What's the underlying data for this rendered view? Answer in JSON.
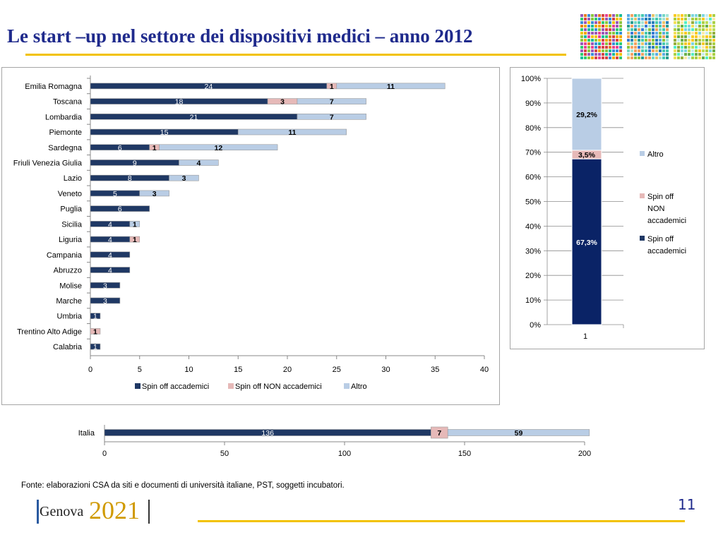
{
  "slide": {
    "title": "Le start –up nel settore dei dispositivi medici – anno 2012",
    "source": "Fonte: elaborazioni CSA da siti e documenti di università italiane, PST, soggetti incubatori.",
    "page_number": "11",
    "logo_text": "Genova",
    "logo_year": "2021",
    "colors": {
      "title": "#1f2a8c",
      "accent_line": "#f2c200",
      "spin_off_accademici": "#1f3864",
      "spin_off_non_accademici": "#e6b9b8",
      "altro": "#b9cde5",
      "stack_spin_off_accademici": "#0a2366"
    }
  },
  "chart_data": [
    {
      "type": "bar",
      "orientation": "horizontal",
      "stacked": true,
      "categories": [
        "Emilia Romagna",
        "Toscana",
        "Lombardia",
        "Piemonte",
        "Sardegna",
        "Friuli Venezia Giulia",
        "Lazio",
        "Veneto",
        "Puglia",
        "Sicilia",
        "Liguria",
        "Campania",
        "Abruzzo",
        "Molise",
        "Marche",
        "Umbria",
        "Trentino Alto Adige",
        "Calabria"
      ],
      "series": [
        {
          "name": "Spin off accademici",
          "values": [
            24,
            18,
            21,
            15,
            6,
            9,
            8,
            5,
            6,
            4,
            4,
            4,
            4,
            3,
            3,
            1,
            0,
            1
          ]
        },
        {
          "name": "Spin off NON accademici",
          "values": [
            1,
            3,
            0,
            0,
            1,
            0,
            0,
            0,
            0,
            0,
            1,
            0,
            0,
            0,
            0,
            0,
            1,
            0
          ]
        },
        {
          "name": "Altro",
          "values": [
            11,
            7,
            7,
            11,
            12,
            4,
            3,
            3,
            0,
            1,
            0,
            0,
            0,
            0,
            0,
            0,
            0,
            0
          ]
        }
      ],
      "xlim": [
        0,
        40
      ],
      "xticks": [
        0,
        5,
        10,
        15,
        20,
        25,
        30,
        35,
        40
      ],
      "legend": "bottom",
      "grid": false
    },
    {
      "type": "bar",
      "orientation": "vertical",
      "stacked": true,
      "percent": true,
      "categories": [
        "1"
      ],
      "series": [
        {
          "name": "Spin off accademici",
          "values": [
            67.3
          ],
          "label": "67,3%"
        },
        {
          "name": "Spin off NON accademici",
          "values": [
            3.5
          ],
          "label": "3,5%"
        },
        {
          "name": "Altro",
          "values": [
            29.2
          ],
          "label": "29,2%"
        }
      ],
      "legend_labels": [
        "Altro",
        "Spin off NON accademici",
        "Spin off accademici"
      ],
      "ylim": [
        0,
        100
      ],
      "yticks": [
        "0%",
        "10%",
        "20%",
        "30%",
        "40%",
        "50%",
        "60%",
        "70%",
        "80%",
        "90%",
        "100%"
      ],
      "legend": "right",
      "grid": true
    },
    {
      "type": "bar",
      "orientation": "horizontal",
      "stacked": true,
      "categories": [
        "Italia"
      ],
      "series": [
        {
          "name": "Spin off accademici",
          "values": [
            136
          ]
        },
        {
          "name": "Spin off NON accademici",
          "values": [
            7
          ]
        },
        {
          "name": "Altro",
          "values": [
            59
          ]
        }
      ],
      "xlim": [
        0,
        200
      ],
      "xticks": [
        0,
        50,
        100,
        150,
        200
      ],
      "grid": false
    }
  ]
}
